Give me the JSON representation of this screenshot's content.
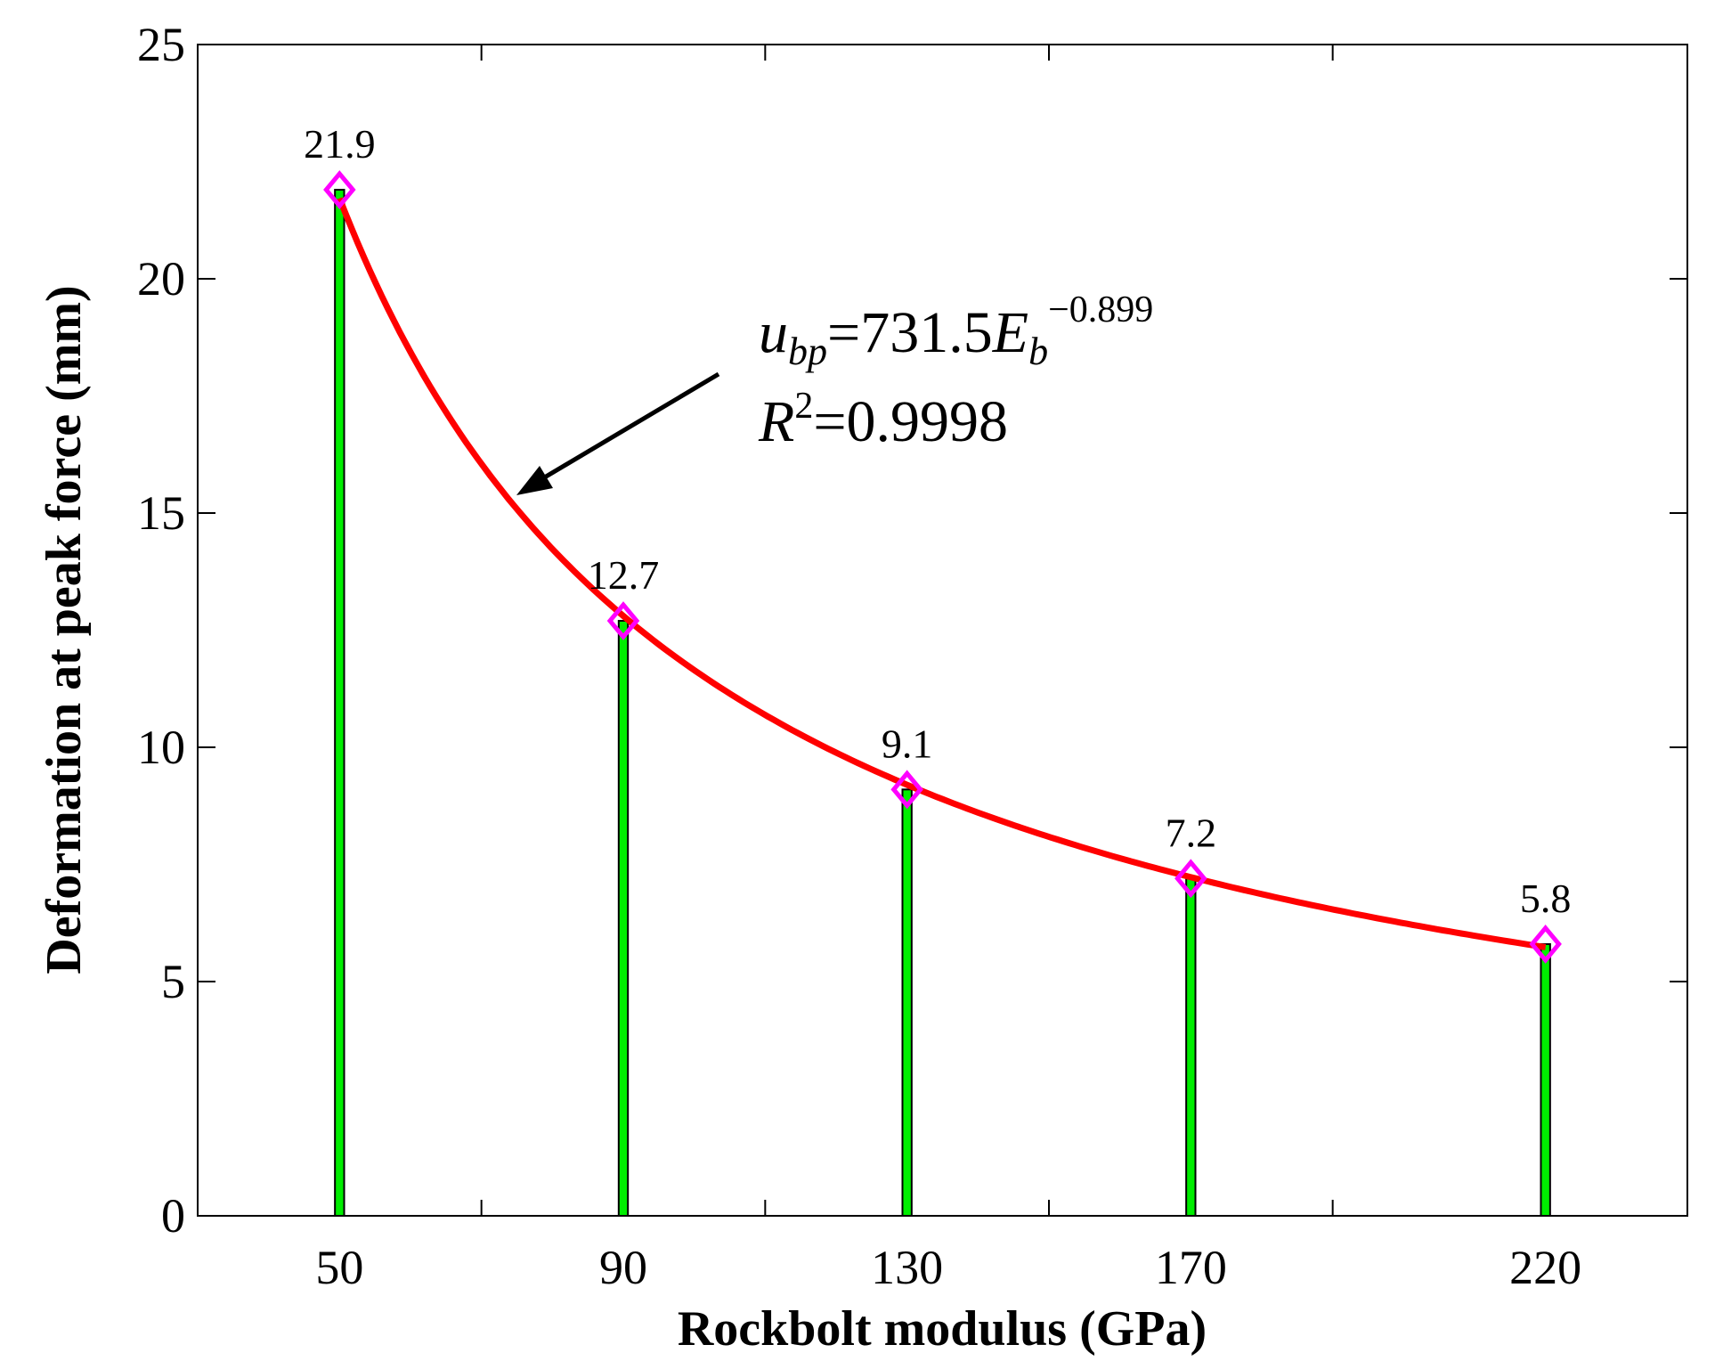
{
  "chart_data": {
    "type": "bar",
    "title": "",
    "xlabel": "Rockbolt modulus (GPa)",
    "ylabel": "Deformation at peak force (mm)",
    "categories": [
      "50",
      "90",
      "130",
      "170",
      "220"
    ],
    "x": [
      50,
      90,
      130,
      170,
      220
    ],
    "values": [
      21.9,
      12.7,
      9.1,
      7.2,
      5.8
    ],
    "data_labels": [
      "21.9",
      "12.7",
      "9.1",
      "7.2",
      "5.8"
    ],
    "xlim": [
      30,
      240
    ],
    "ylim": [
      0,
      25
    ],
    "yticks": [
      0,
      5,
      10,
      15,
      20,
      25
    ],
    "xticks_minor": [
      30,
      70,
      110,
      150,
      190,
      240
    ],
    "grid": false,
    "bar_color": "#00ee00",
    "marker_color": "#ff00ff",
    "fit_color": "#ff0000",
    "fit": {
      "type": "power",
      "coefficient": 731.5,
      "exponent": -0.899,
      "r_squared": 0.9998
    },
    "annotation": {
      "eq_var": "u",
      "eq_var_sub": "bp",
      "eq_mid": "=731.5",
      "eq_e": "E",
      "eq_e_sub": "b",
      "eq_exp": "−0.899",
      "r2_r": "R",
      "r2_sup": "2",
      "r2_val": "=0.9998"
    }
  }
}
